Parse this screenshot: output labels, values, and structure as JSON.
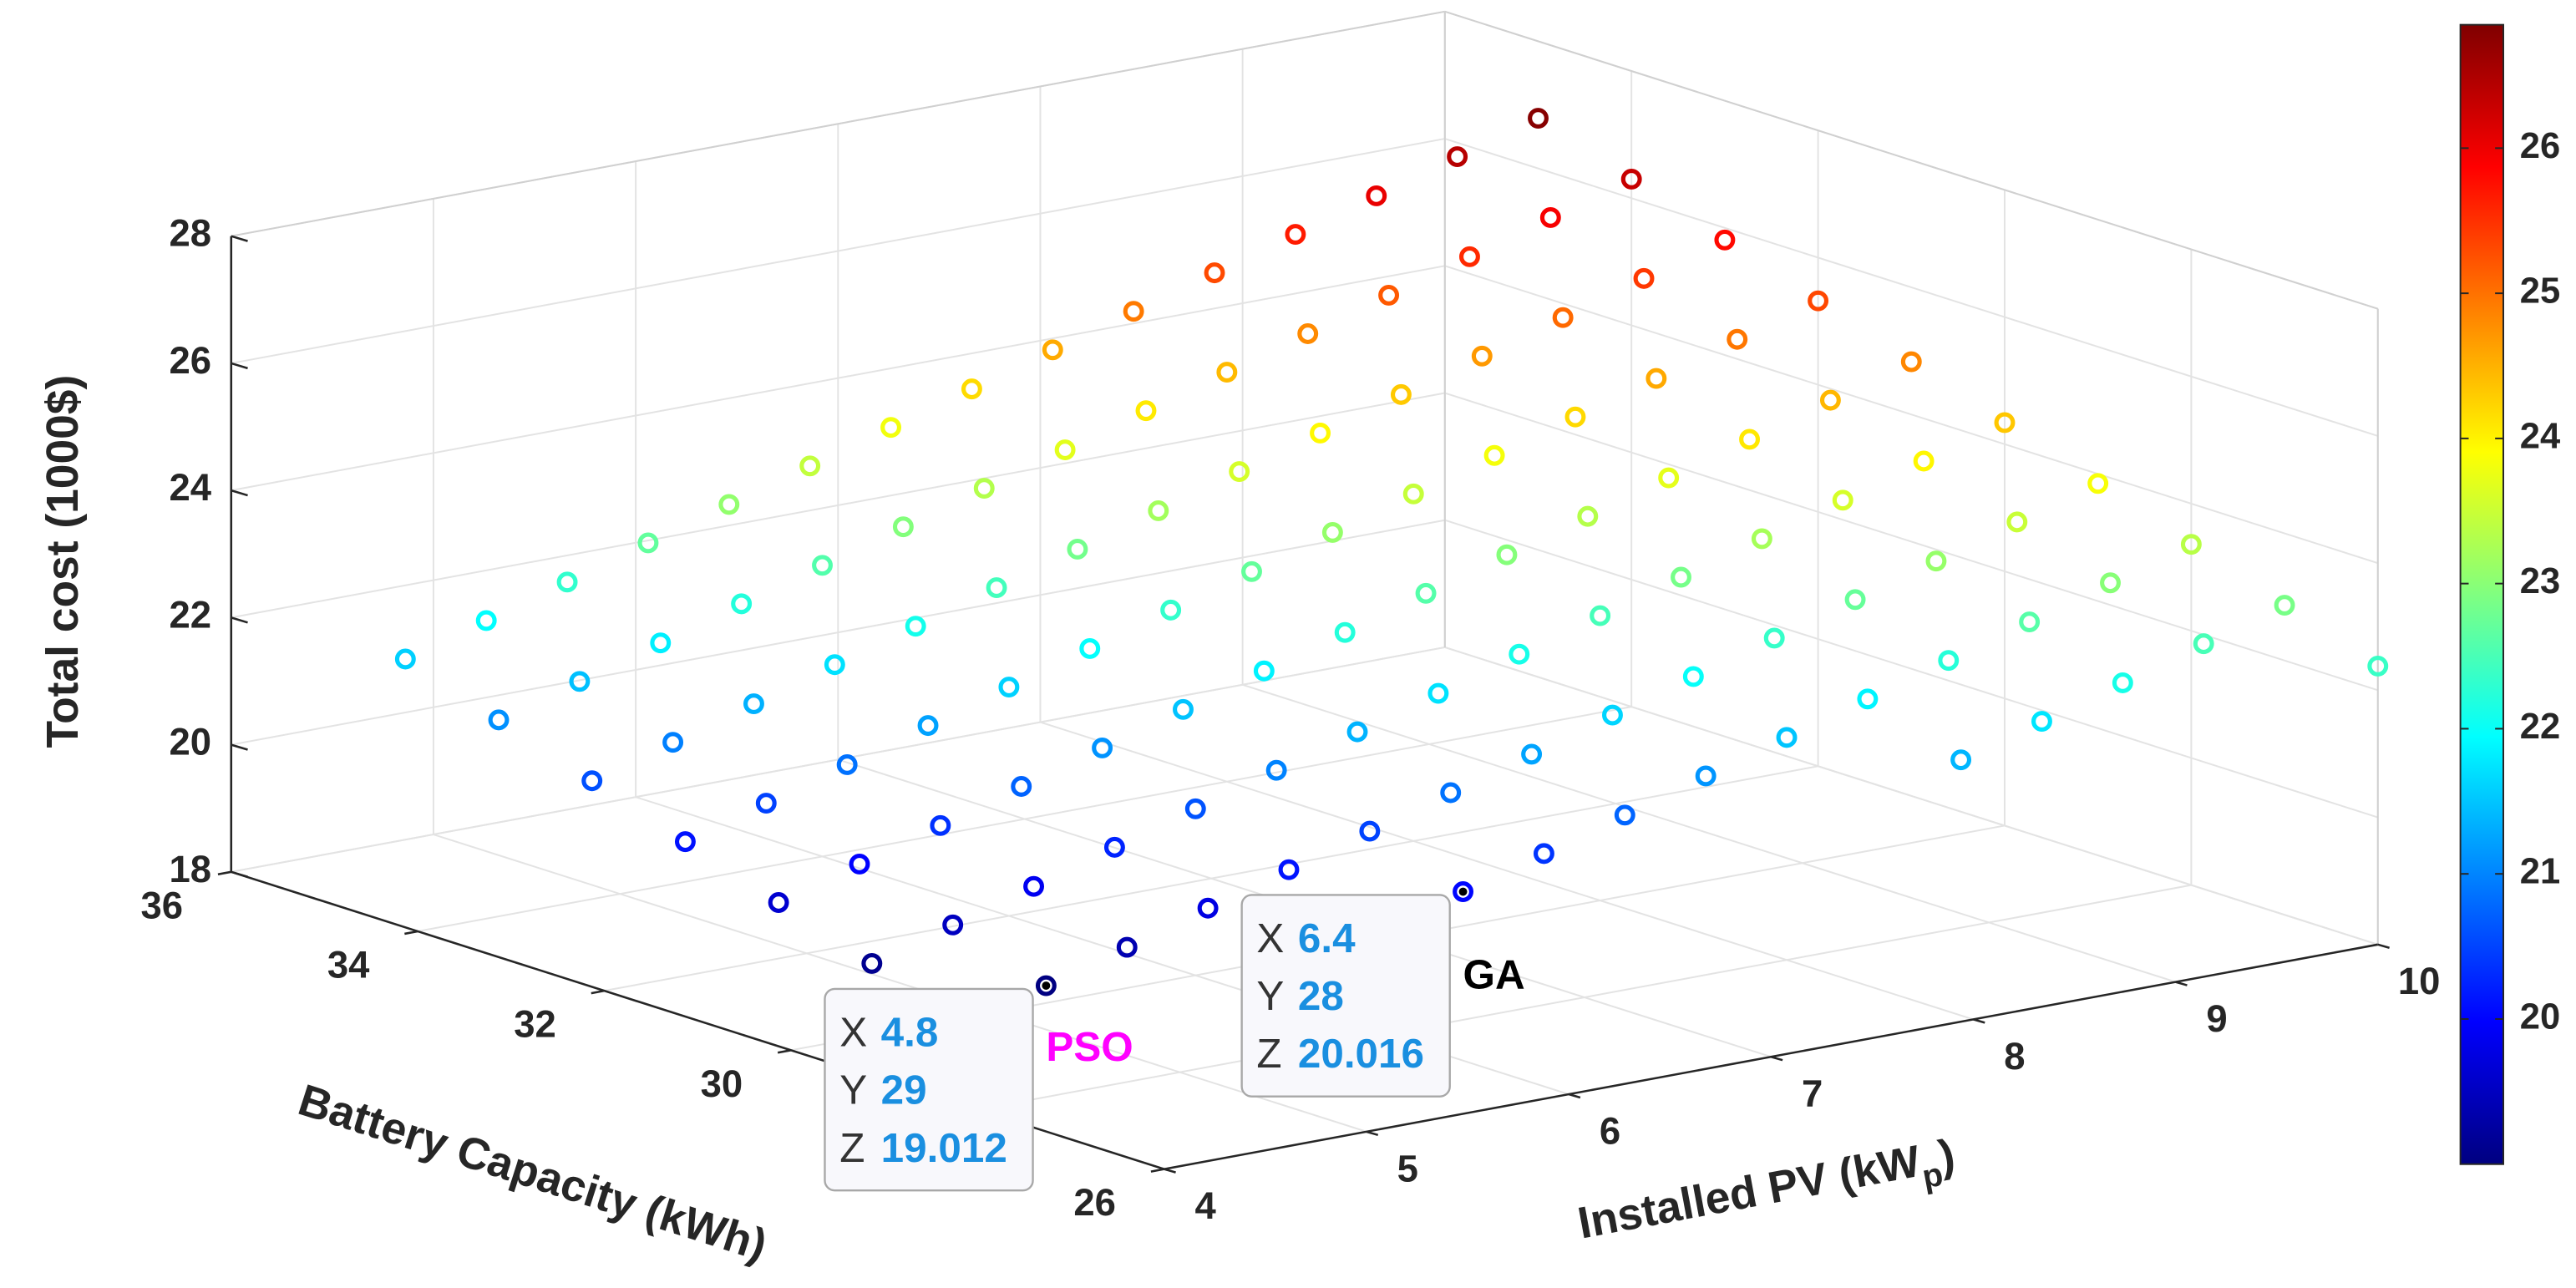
{
  "chart_data": {
    "type": "scatter3",
    "xlabel": [
      "Installed PV (kW",
      "p",
      ")"
    ],
    "ylabel": "Battery Capacity (kWh)",
    "zlabel": "Total cost (1000$)",
    "xlim": [
      4,
      10
    ],
    "xticks": [
      4,
      5,
      6,
      7,
      8,
      9,
      10
    ],
    "ylim": [
      26,
      36
    ],
    "yticks": [
      26,
      28,
      30,
      32,
      34,
      36
    ],
    "zlim": [
      18,
      28
    ],
    "zticks": [
      18,
      20,
      22,
      24,
      26,
      28
    ],
    "grid": true,
    "colormap": "jet",
    "clim": [
      19.0,
      26.85
    ],
    "cticks": [
      20,
      21,
      22,
      23,
      24,
      25,
      26
    ],
    "x": [
      4.4,
      4.4,
      4.4,
      4.4,
      4.4,
      4.4,
      4.8,
      4.8,
      4.8,
      4.8,
      4.8,
      4.8,
      4.8,
      5.2,
      5.2,
      5.2,
      5.2,
      5.2,
      5.2,
      5.2,
      5.6,
      5.6,
      5.6,
      5.6,
      5.6,
      5.6,
      5.6,
      6,
      6,
      6,
      6,
      6,
      6,
      6,
      6.4,
      6.4,
      6.4,
      6.4,
      6.4,
      6.4,
      6.4,
      6.4,
      6.8,
      6.8,
      6.8,
      6.8,
      6.8,
      6.8,
      6.8,
      6.8,
      7.2,
      7.2,
      7.2,
      7.2,
      7.2,
      7.2,
      7.2,
      7.2,
      7.6,
      7.6,
      7.6,
      7.6,
      7.6,
      7.6,
      7.6,
      7.6,
      8,
      8,
      8,
      8,
      8,
      8,
      8,
      8,
      8.4,
      8.4,
      8.4,
      8.4,
      8.4,
      8.4,
      8.4,
      8.4,
      8.4,
      8.8,
      8.8,
      8.8,
      8.8,
      8.8,
      8.8,
      8.8,
      8.8,
      8.8,
      9.2,
      9.2,
      9.2,
      9.2,
      9.2,
      9.2,
      9.2,
      9.2,
      9.2,
      9.6,
      9.6,
      9.6,
      9.6,
      9.6,
      9.6,
      9.6,
      9.6,
      9.6,
      10,
      10,
      10,
      10,
      10,
      10,
      10,
      10,
      10,
      10
    ],
    "y": [
      30,
      31,
      32,
      33,
      34,
      35,
      29,
      30,
      31,
      32,
      33,
      34,
      35,
      29,
      30,
      31,
      32,
      33,
      34,
      35,
      29,
      30,
      31,
      32,
      33,
      34,
      35,
      29,
      30,
      31,
      32,
      33,
      34,
      35,
      28,
      29,
      30,
      31,
      32,
      33,
      34,
      35,
      28,
      29,
      30,
      31,
      32,
      33,
      34,
      35,
      28,
      29,
      30,
      31,
      32,
      33,
      34,
      35,
      28,
      29,
      30,
      31,
      32,
      33,
      34,
      35,
      28,
      29,
      30,
      31,
      32,
      33,
      34,
      35,
      27,
      28,
      29,
      30,
      31,
      32,
      33,
      34,
      35,
      27,
      28,
      29,
      30,
      31,
      32,
      33,
      34,
      35,
      27,
      28,
      29,
      30,
      31,
      32,
      33,
      34,
      35,
      27,
      28,
      29,
      30,
      31,
      32,
      33,
      34,
      35,
      26,
      27,
      28,
      29,
      30,
      31,
      32,
      33,
      34,
      35
    ],
    "z": [
      19.13,
      19.62,
      20.11,
      20.6,
      21.09,
      21.58,
      19.012,
      19.5,
      19.99,
      20.48,
      20.97,
      21.46,
      21.95,
      19.38,
      19.87,
      20.36,
      20.85,
      21.34,
      21.83,
      22.32,
      19.76,
      20.25,
      20.74,
      21.23,
      21.72,
      22.21,
      22.7,
      20.13,
      20.62,
      21.11,
      21.6,
      22.09,
      22.58,
      23.07,
      20.016,
      20.5,
      20.99,
      21.48,
      21.97,
      22.46,
      22.95,
      23.44,
      20.38,
      20.87,
      21.36,
      21.85,
      22.34,
      22.83,
      23.32,
      23.81,
      20.75,
      21.24,
      21.73,
      22.22,
      22.71,
      23.2,
      23.69,
      24.18,
      21.13,
      21.62,
      22.11,
      22.6,
      23.09,
      23.58,
      24.07,
      24.56,
      21.5,
      21.99,
      22.48,
      22.97,
      23.46,
      23.95,
      24.44,
      24.93,
      21.38,
      21.87,
      22.36,
      22.85,
      23.34,
      23.83,
      24.32,
      24.81,
      25.3,
      21.75,
      22.24,
      22.73,
      23.22,
      23.71,
      24.2,
      24.69,
      25.18,
      25.67,
      22.12,
      22.61,
      23.1,
      23.59,
      24.08,
      24.57,
      25.06,
      25.55,
      26.04,
      22.5,
      22.99,
      23.48,
      23.97,
      24.46,
      24.95,
      25.44,
      25.93,
      26.42,
      22.38,
      22.87,
      23.36,
      23.85,
      24.34,
      24.83,
      25.32,
      25.81,
      26.3,
      26.79
    ],
    "datatip_labels": [
      "X",
      "Y",
      "Z"
    ],
    "annotations": [
      {
        "label": "PSO",
        "color": "#ff00ff",
        "x": 4.8,
        "y": 29,
        "z": 19.012
      },
      {
        "label": "GA",
        "color": "#000000",
        "x": 6.4,
        "y": 28,
        "z": 20.016
      }
    ]
  }
}
